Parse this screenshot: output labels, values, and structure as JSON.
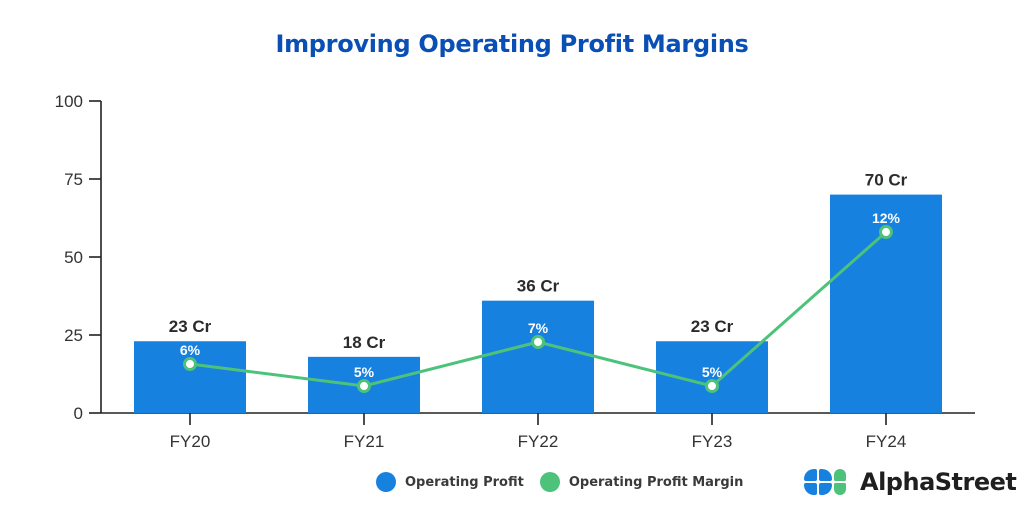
{
  "chart_data": {
    "type": "bar+line",
    "title": "Improving Operating Profit Margins",
    "categories": [
      "FY20",
      "FY21",
      "FY22",
      "FY23",
      "FY24"
    ],
    "series": [
      {
        "name": "Operating Profit",
        "type": "bar",
        "axis": "left",
        "values": [
          23,
          18,
          36,
          23,
          70
        ],
        "labels": [
          "23 Cr",
          "18 Cr",
          "36 Cr",
          "23 Cr",
          "70 Cr"
        ],
        "color": "#1781e0"
      },
      {
        "name": "Operating Profit Margin",
        "type": "line",
        "axis": "secondary-hidden",
        "values": [
          6,
          5,
          7,
          5,
          12
        ],
        "labels": [
          "6%",
          "5%",
          "7%",
          "5%",
          "12%"
        ],
        "color": "#4cc27a"
      }
    ],
    "xlabel": "",
    "ylabel": "",
    "ylim": [
      0,
      100
    ],
    "yticks": [
      0,
      25,
      50,
      75,
      100
    ],
    "grid": false,
    "legend_position": "bottom-center"
  },
  "legend": {
    "items": [
      {
        "label": "Operating Profit",
        "color": "#1781e0"
      },
      {
        "label": "Operating Profit Margin",
        "color": "#4cc27a"
      }
    ]
  },
  "branding": {
    "logo_text": "AlphaStreet",
    "logo_colors": {
      "blue": "#1781e0",
      "green": "#4cc27a"
    }
  },
  "colors": {
    "title": "#0a4fb5",
    "axis": "#222222"
  }
}
